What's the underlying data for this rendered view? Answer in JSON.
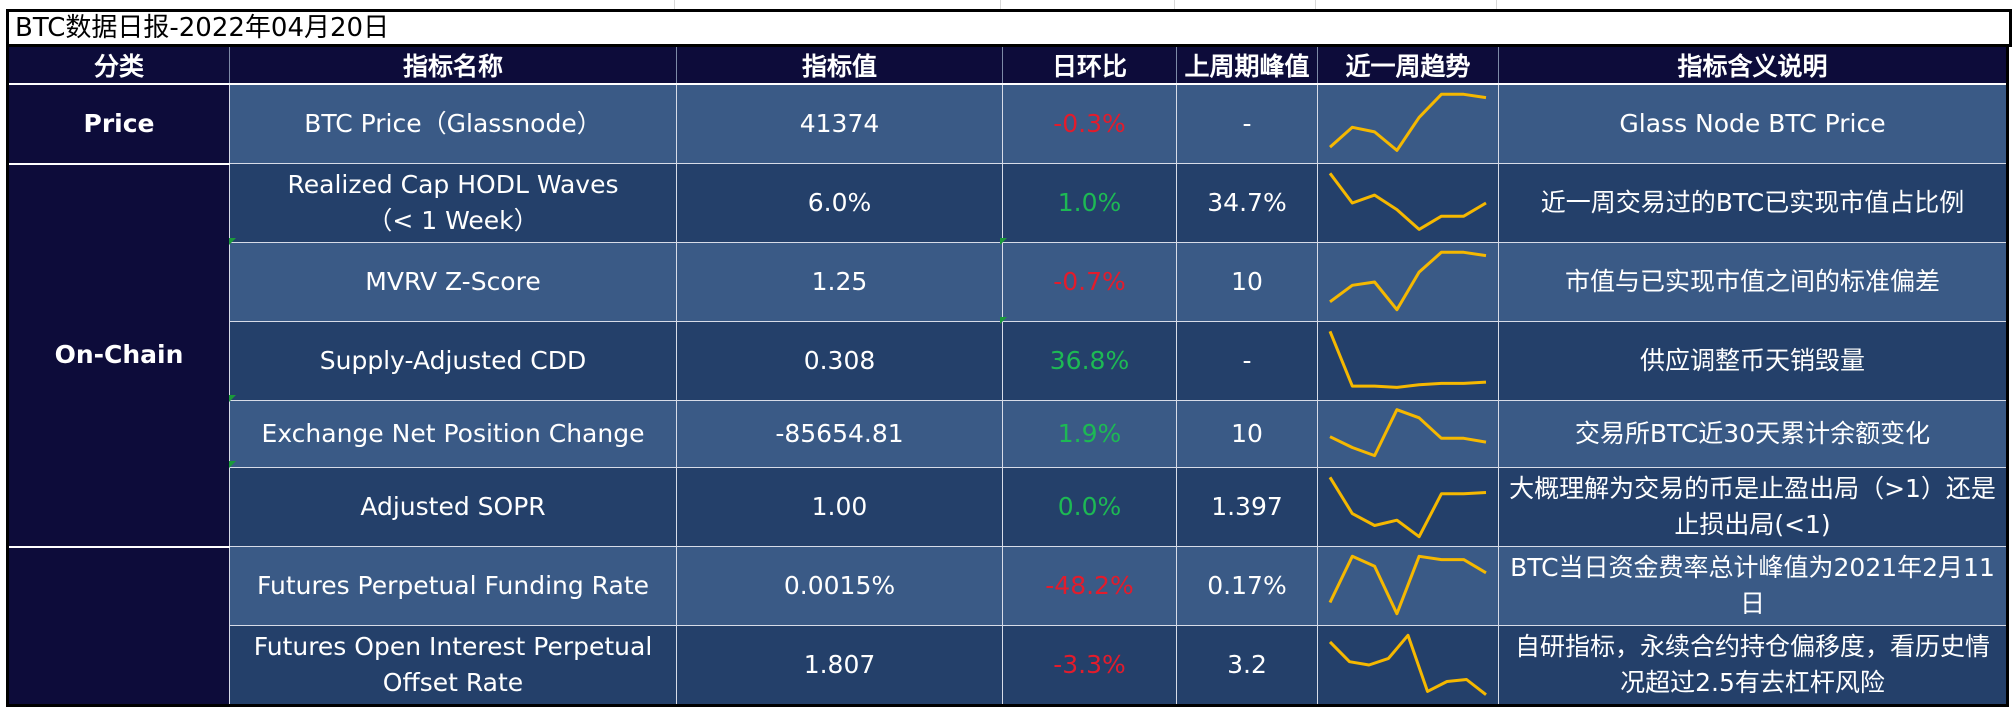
{
  "title": "BTC数据日报-2022年04月20日",
  "headers": {
    "category": "分类",
    "name": "指标名称",
    "value": "指标值",
    "dod": "日环比",
    "peak": "上周期峰值",
    "trend": "近一周趋势",
    "desc": "指标含义说明"
  },
  "categories": {
    "price": "Price",
    "onchain": "On-Chain",
    "derivatives": ""
  },
  "colors": {
    "header_bg": "#0d0c3a",
    "row_light": "#3a5a86",
    "row_dark": "#24406a",
    "negative": "#e21c2c",
    "positive": "#1db954",
    "sparkline": "#f5b800"
  },
  "rows": [
    {
      "name_line1": "BTC Price（Glassnode）",
      "name_line2": "",
      "value": "41374",
      "dod": "-0.3%",
      "dod_sign": "neg",
      "peak": "-",
      "desc_line1": "Glass Node BTC Price",
      "desc_line2": "",
      "trend": [
        0.15,
        0.45,
        0.38,
        0.1,
        0.6,
        0.95,
        0.95,
        0.9
      ]
    },
    {
      "name_line1": "Realized Cap HODL Waves",
      "name_line2": "（< 1 Week）",
      "value": "6.0%",
      "dod": "1.0%",
      "dod_sign": "pos",
      "peak": "34.7%",
      "desc_line1": "近一周交易过的BTC已实现市值占比例",
      "desc_line2": "",
      "trend": [
        0.95,
        0.5,
        0.62,
        0.4,
        0.1,
        0.3,
        0.3,
        0.5
      ]
    },
    {
      "name_line1": "MVRV Z-Score",
      "name_line2": "",
      "value": "1.25",
      "dod": "-0.7%",
      "dod_sign": "neg",
      "peak": "10",
      "desc_line1": "市值与已实现市值之间的标准偏差",
      "desc_line2": "",
      "trend": [
        0.2,
        0.45,
        0.5,
        0.08,
        0.65,
        0.95,
        0.95,
        0.9
      ]
    },
    {
      "name_line1": "Supply-Adjusted CDD",
      "name_line2": "",
      "value": "0.308",
      "dod": "36.8%",
      "dod_sign": "pos",
      "peak": "-",
      "desc_line1": "供应调整币天销毁量",
      "desc_line2": "",
      "trend": [
        0.95,
        0.12,
        0.12,
        0.1,
        0.14,
        0.16,
        0.16,
        0.18
      ]
    },
    {
      "name_line1": "Exchange Net Position Change",
      "name_line2": "",
      "value": "-85654.81",
      "dod": "1.9%",
      "dod_sign": "pos",
      "peak": "10",
      "desc_line1": "交易所BTC近30天累计余额变化",
      "desc_line2": "",
      "trend": [
        0.45,
        0.25,
        0.1,
        0.95,
        0.8,
        0.42,
        0.42,
        0.35
      ]
    },
    {
      "name_line1": "Adjusted SOPR",
      "name_line2": "",
      "value": "1.00",
      "dod": "0.0%",
      "dod_sign": "pos",
      "peak": "1.397",
      "desc_line1": "大概理解为交易的币是止盈出局（>1）还是",
      "desc_line2": "止损出局(<1)",
      "trend": [
        0.95,
        0.4,
        0.22,
        0.3,
        0.05,
        0.7,
        0.7,
        0.72
      ]
    },
    {
      "name_line1": "Futures Perpetual Funding Rate",
      "name_line2": "",
      "value": "0.0015%",
      "dod": "-48.2%",
      "dod_sign": "neg",
      "peak": "0.17%",
      "desc_line1": "BTC当日资金费率总计峰值为2021年2月11日",
      "desc_line2": "",
      "trend": [
        0.25,
        0.95,
        0.8,
        0.08,
        0.95,
        0.9,
        0.9,
        0.7
      ]
    },
    {
      "name_line1": "Futures Open Interest Perpetual",
      "name_line2": "Offset Rate",
      "value": "1.807",
      "dod": "-3.3%",
      "dod_sign": "neg",
      "peak": "3.2",
      "desc_line1": "自研指标，永续合约持仓偏移度，看历史情",
      "desc_line2": "况超过2.5有去杠杆风险",
      "trend": [
        0.85,
        0.55,
        0.5,
        0.6,
        0.95,
        0.1,
        0.25,
        0.28,
        0.05
      ]
    }
  ]
}
